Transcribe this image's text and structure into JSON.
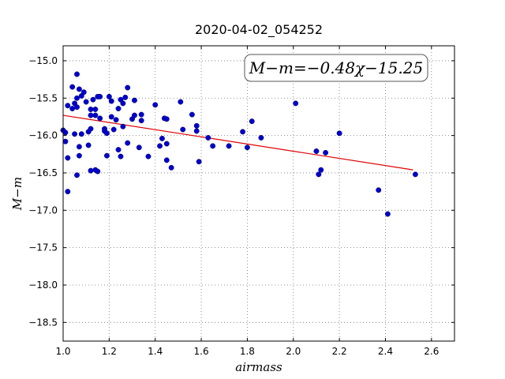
{
  "chart_data": {
    "type": "scatter",
    "title": "2020-04-02_054252",
    "xlabel": "airmass",
    "ylabel": "M−m",
    "xlim": [
      1.0,
      2.7
    ],
    "ylim": [
      -18.75,
      -14.8
    ],
    "y_inverted": true,
    "grid": true,
    "x_ticks": [
      1.0,
      1.2,
      1.4,
      1.6,
      1.8,
      2.0,
      2.2,
      2.4,
      2.6
    ],
    "x_tick_labels": [
      "1.0",
      "1.2",
      "1.4",
      "1.6",
      "1.8",
      "2.0",
      "2.2",
      "2.4",
      "2.6"
    ],
    "y_ticks": [
      -15.0,
      -15.5,
      -16.0,
      -16.5,
      -17.0,
      -17.5,
      -18.0,
      -18.5
    ],
    "y_tick_labels": [
      "−15.0",
      "−15.5",
      "−16.0",
      "−16.5",
      "−17.0",
      "−17.5",
      "−18.0",
      "−18.5"
    ],
    "annotation": "M−m=−0.48χ−15.25",
    "point_color": "#0000cc",
    "fit_color": "#dd0000",
    "fit_line": {
      "slope": -0.48,
      "intercept": -15.25,
      "x_range": [
        1.0,
        2.52
      ]
    },
    "points": [
      [
        1.0,
        -15.93
      ],
      [
        1.01,
        -15.96
      ],
      [
        1.01,
        -16.08
      ],
      [
        1.02,
        -16.3
      ],
      [
        1.02,
        -16.75
      ],
      [
        1.02,
        -15.6
      ],
      [
        1.04,
        -15.35
      ],
      [
        1.04,
        -15.64
      ],
      [
        1.05,
        -15.57
      ],
      [
        1.05,
        -15.98
      ],
      [
        1.06,
        -15.18
      ],
      [
        1.06,
        -15.5
      ],
      [
        1.06,
        -15.62
      ],
      [
        1.07,
        -16.15
      ],
      [
        1.07,
        -16.27
      ],
      [
        1.06,
        -16.53
      ],
      [
        1.07,
        -15.38
      ],
      [
        1.08,
        -15.47
      ],
      [
        1.08,
        -15.98
      ],
      [
        1.09,
        -15.42
      ],
      [
        1.1,
        -15.55
      ],
      [
        1.11,
        -16.13
      ],
      [
        1.11,
        -15.95
      ],
      [
        1.12,
        -15.65
      ],
      [
        1.12,
        -15.73
      ],
      [
        1.12,
        -15.91
      ],
      [
        1.12,
        -16.47
      ],
      [
        1.13,
        -15.52
      ],
      [
        1.14,
        -16.46
      ],
      [
        1.14,
        -15.65
      ],
      [
        1.14,
        -15.73
      ],
      [
        1.15,
        -15.48
      ],
      [
        1.15,
        -16.48
      ],
      [
        1.16,
        -15.48
      ],
      [
        1.16,
        -15.77
      ],
      [
        1.18,
        -15.91
      ],
      [
        1.18,
        -15.94
      ],
      [
        1.19,
        -15.97
      ],
      [
        1.19,
        -16.27
      ],
      [
        1.2,
        -15.48
      ],
      [
        1.21,
        -15.54
      ],
      [
        1.21,
        -15.75
      ],
      [
        1.22,
        -15.92
      ],
      [
        1.23,
        -15.79
      ],
      [
        1.24,
        -15.64
      ],
      [
        1.24,
        -16.19
      ],
      [
        1.25,
        -16.28
      ],
      [
        1.25,
        -15.52
      ],
      [
        1.26,
        -15.88
      ],
      [
        1.26,
        -15.57
      ],
      [
        1.27,
        -15.49
      ],
      [
        1.28,
        -15.36
      ],
      [
        1.28,
        -16.1
      ],
      [
        1.3,
        -15.78
      ],
      [
        1.31,
        -15.53
      ],
      [
        1.31,
        -15.73
      ],
      [
        1.33,
        -16.16
      ],
      [
        1.34,
        -15.72
      ],
      [
        1.34,
        -15.8
      ],
      [
        1.37,
        -16.28
      ],
      [
        1.4,
        -15.59
      ],
      [
        1.42,
        -16.14
      ],
      [
        1.43,
        -16.04
      ],
      [
        1.44,
        -15.77
      ],
      [
        1.45,
        -15.78
      ],
      [
        1.45,
        -16.11
      ],
      [
        1.45,
        -16.33
      ],
      [
        1.47,
        -16.43
      ],
      [
        1.51,
        -15.55
      ],
      [
        1.52,
        -15.92
      ],
      [
        1.56,
        -15.72
      ],
      [
        1.58,
        -15.87
      ],
      [
        1.58,
        -15.94
      ],
      [
        1.59,
        -16.35
      ],
      [
        1.63,
        -16.03
      ],
      [
        1.65,
        -16.14
      ],
      [
        1.72,
        -16.14
      ],
      [
        1.78,
        -15.95
      ],
      [
        1.8,
        -16.16
      ],
      [
        1.82,
        -15.81
      ],
      [
        1.86,
        -16.03
      ],
      [
        2.01,
        -15.57
      ],
      [
        2.1,
        -16.21
      ],
      [
        2.11,
        -16.52
      ],
      [
        2.12,
        -16.46
      ],
      [
        2.14,
        -16.23
      ],
      [
        2.2,
        -15.97
      ],
      [
        2.37,
        -16.73
      ],
      [
        2.41,
        -17.05
      ],
      [
        2.53,
        -16.52
      ]
    ]
  }
}
